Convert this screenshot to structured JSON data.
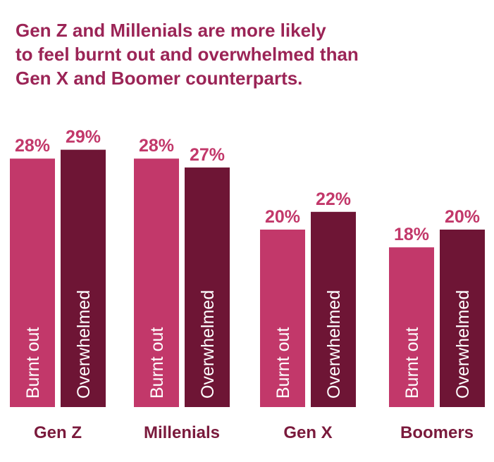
{
  "chart_data": {
    "type": "bar",
    "title": [
      "Gen Z and Millenials are more likely",
      "to feel burnt out and overwhelmed than",
      "Gen X and Boomer counterparts."
    ],
    "categories": [
      "Gen Z",
      "Millenials",
      "Gen X",
      "Boomers"
    ],
    "series": [
      {
        "name": "Burnt out",
        "color": "#c2386a",
        "values": [
          28,
          28,
          20,
          18
        ],
        "value_labels": [
          "28%",
          "28%",
          "20%",
          "18%"
        ]
      },
      {
        "name": "Overwhelmed",
        "color": "#6e1535",
        "values": [
          29,
          27,
          22,
          20
        ],
        "value_labels": [
          "29%",
          "27%",
          "22%",
          "20%"
        ]
      }
    ],
    "title_color": "#9b2456",
    "label_color": "#c2386a",
    "category_color": "#7a1a3c"
  }
}
